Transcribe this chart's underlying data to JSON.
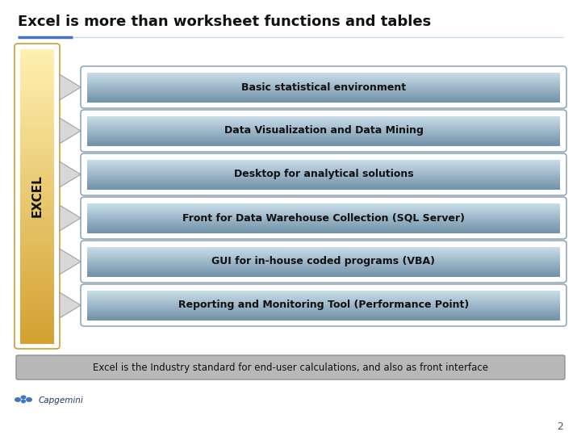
{
  "title": "Excel is more than worksheet functions and tables",
  "title_fontsize": 13,
  "title_color": "#111111",
  "title_underline_color": "#4472c4",
  "title_underline2_color": "#c8d8e8",
  "bg_color": "#ffffff",
  "slide_number": "2",
  "excel_box": {
    "label": "EXCEL",
    "color_top": "#fef0b0",
    "color_bot": "#d4a030",
    "border_color": "#c8a030",
    "text_color": "#111111",
    "fontsize": 11
  },
  "items": [
    "Basic statistical environment",
    "Data Visualization and Data Mining",
    "Desktop for analytical solutions",
    "Front for Data Warehouse Collection (SQL Server)",
    "GUI for in-house coded programs (VBA)",
    "Reporting and Monitoring Tool (Performance Point)"
  ],
  "item_color_top": "#c8dce8",
  "item_color_bot": "#7090a8",
  "item_border_color": "#809ab0",
  "item_text_color": "#111111",
  "item_fontsize": 9,
  "arrow_fill": "#d8d8d8",
  "arrow_edge": "#a0a0a0",
  "footer_text": "Excel is the Industry standard for end-user calculations, and also as front interface",
  "footer_bg": "#b8b8b8",
  "footer_border": "#909090",
  "footer_text_color": "#111111",
  "footer_fontsize": 8.5,
  "logo_text": "Capgemini",
  "logo_fontsize": 7.5,
  "logo_color": "#1a3a6a",
  "logo_icon_color": "#4472c4"
}
